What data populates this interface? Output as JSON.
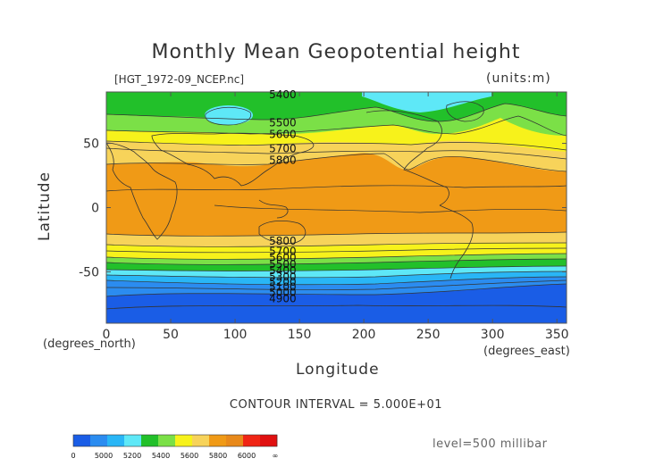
{
  "chart_data": {
    "type": "heatmap",
    "title": "Monthly Mean Geopotential height",
    "file_label": "[HGT_1972-09_NCEP.nc]",
    "units_label": "(units:m)",
    "xlabel": "Longitude",
    "ylabel": "Latitude",
    "x_unit_label": "(degrees_east)",
    "y_unit_label": "(degrees_north)",
    "xlim": [
      0,
      357.5
    ],
    "ylim": [
      -90,
      90
    ],
    "x_ticks": [
      0,
      50,
      100,
      150,
      200,
      250,
      300,
      350
    ],
    "y_ticks": [
      50,
      0,
      -50
    ],
    "contour_interval_label": "CONTOUR INTERVAL = 5.000E+01",
    "level_label": "level=500 millibar",
    "contour_labels": [
      {
        "text": "5400",
        "lon": 125,
        "lat": 88
      },
      {
        "text": "5500",
        "lon": 125,
        "lat": 66
      },
      {
        "text": "5600",
        "lon": 125,
        "lat": 57
      },
      {
        "text": "5700",
        "lon": 125,
        "lat": 46
      },
      {
        "text": "5800",
        "lon": 125,
        "lat": 37
      },
      {
        "text": "5800",
        "lon": 125,
        "lat": -26
      },
      {
        "text": "5700",
        "lon": 125,
        "lat": -34
      },
      {
        "text": "5600",
        "lon": 125,
        "lat": -39
      },
      {
        "text": "5500",
        "lon": 125,
        "lat": -44
      },
      {
        "text": "5400",
        "lon": 125,
        "lat": -49
      },
      {
        "text": "5300",
        "lon": 125,
        "lat": -54
      },
      {
        "text": "5200",
        "lon": 125,
        "lat": -58
      },
      {
        "text": "5100",
        "lon": 125,
        "lat": -62
      },
      {
        "text": "5000",
        "lon": 125,
        "lat": -66
      },
      {
        "text": "4900",
        "lon": 125,
        "lat": -71
      }
    ],
    "colorbar": {
      "tick_labels": [
        "0",
        "5000",
        "5200",
        "5400",
        "5600",
        "5800",
        "6000",
        "∞"
      ],
      "colors": [
        "#1a5de6",
        "#2b8cf0",
        "#29b6f6",
        "#5ee8f7",
        "#22c02a",
        "#7be047",
        "#f7f21b",
        "#f7d35a",
        "#f09a16",
        "#e8891a",
        "#f02515",
        "#e01010"
      ]
    },
    "bands": [
      {
        "range": [
          0,
          5000
        ],
        "color": "#1a5de6"
      },
      {
        "range": [
          5000,
          5200
        ],
        "color": "#2b8cf0"
      },
      {
        "range": [
          5200,
          5300
        ],
        "color": "#29b6f6"
      },
      {
        "range": [
          5300,
          5400
        ],
        "color": "#5ee8f7"
      },
      {
        "range": [
          5400,
          5500
        ],
        "color": "#22c02a"
      },
      {
        "range": [
          5500,
          5600
        ],
        "color": "#7be047"
      },
      {
        "range": [
          5600,
          5700
        ],
        "color": "#f7f21b"
      },
      {
        "range": [
          5700,
          5800
        ],
        "color": "#f7d35a"
      },
      {
        "range": [
          5800,
          6000
        ],
        "color": "#f09a16"
      }
    ]
  }
}
